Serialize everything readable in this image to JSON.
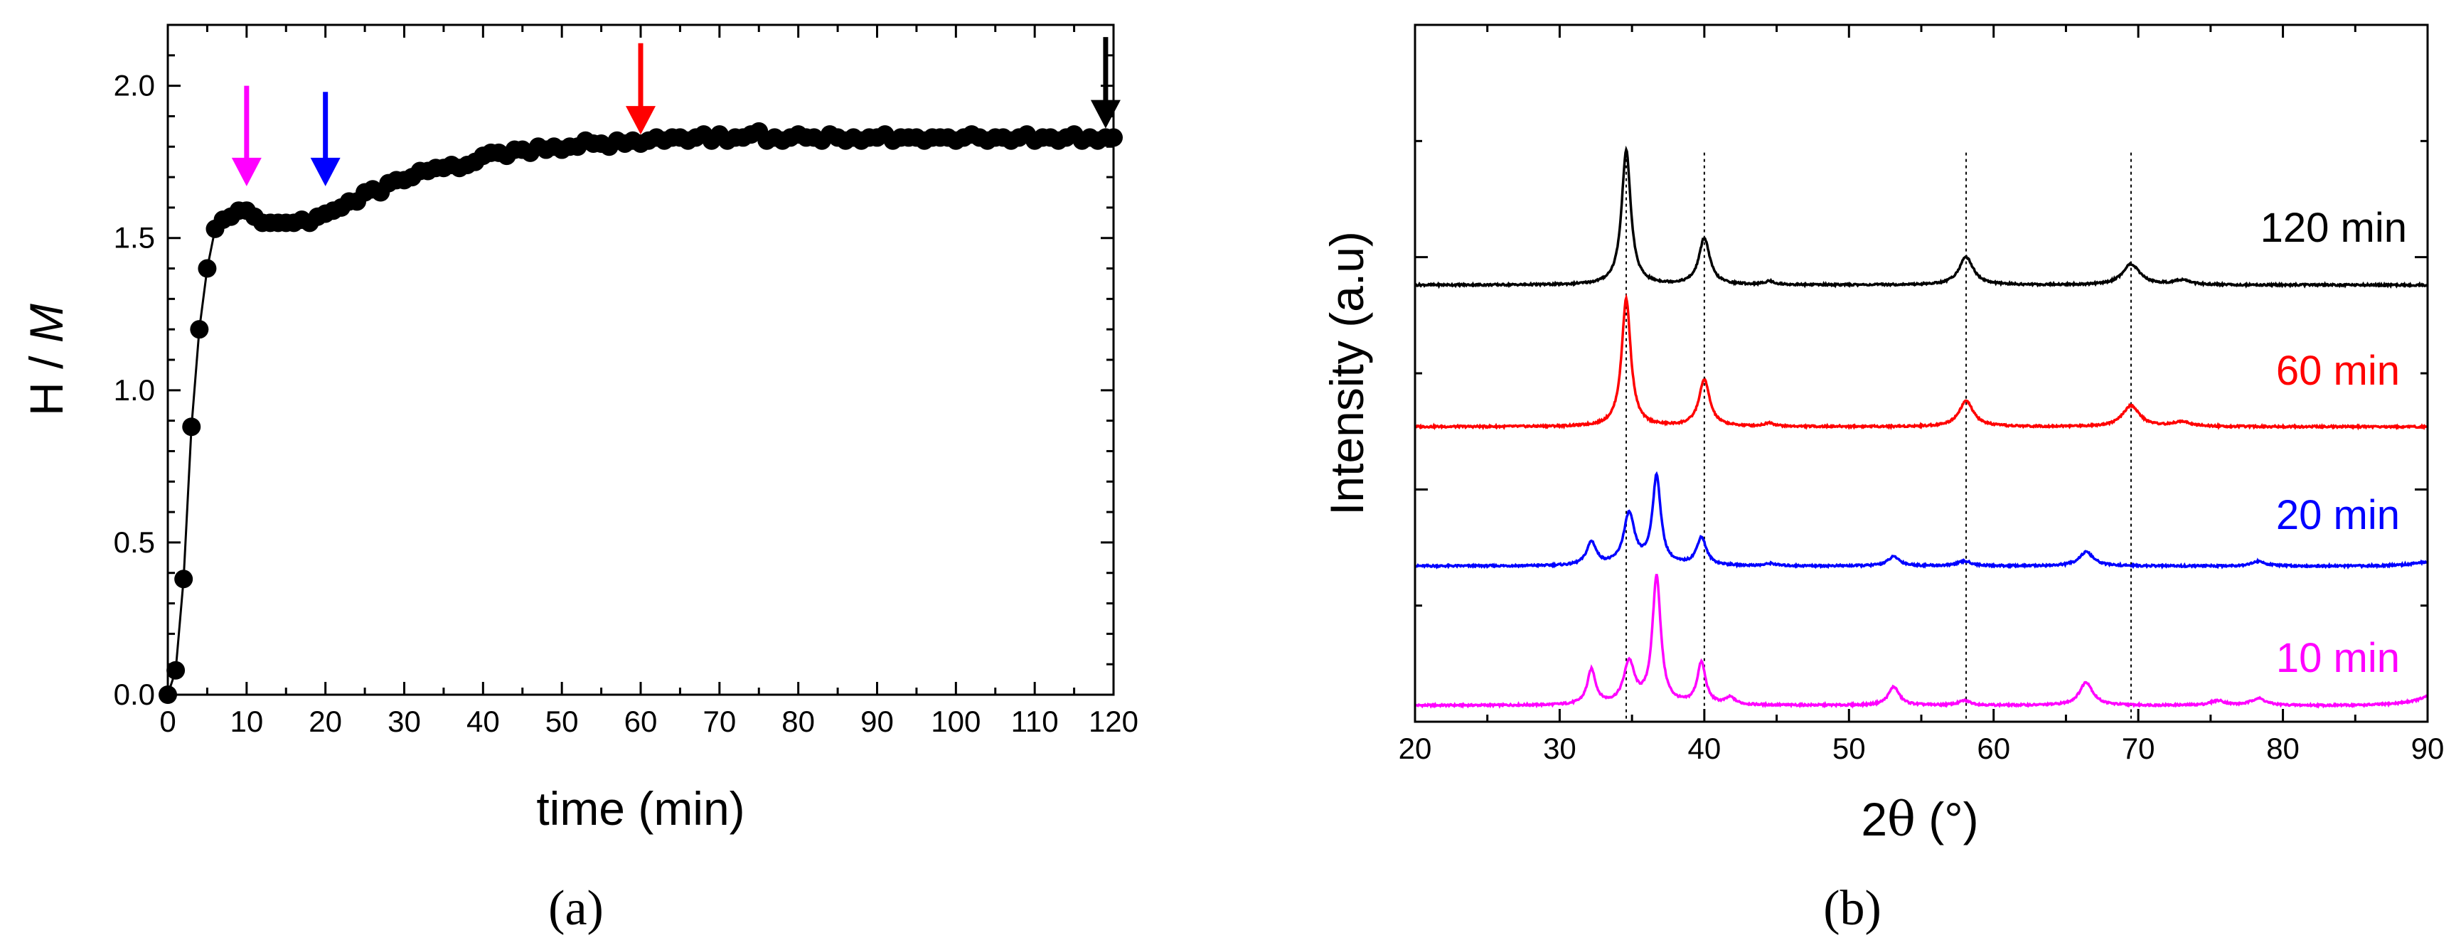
{
  "chart_data": [
    {
      "type": "scatter",
      "panel_label": "(a)",
      "xlabel": "time (min)",
      "ylabel_main": "H / ",
      "ylabel_italic": "M",
      "xlim": [
        0,
        120
      ],
      "ylim": [
        0,
        2.2
      ],
      "x_ticks": [
        0,
        10,
        20,
        30,
        40,
        50,
        60,
        70,
        80,
        90,
        100,
        110,
        120
      ],
      "y_ticks": [
        0.0,
        0.5,
        1.0,
        1.5,
        2.0
      ],
      "y_tick_labels": [
        "0.0",
        "0.5",
        "1.0",
        "1.5",
        "2.0"
      ],
      "series": [
        {
          "name": "H/M",
          "color": "#000000",
          "x": [
            0,
            1,
            2,
            3,
            4,
            5,
            6,
            7,
            8,
            9,
            10,
            11,
            12,
            13,
            14,
            15,
            16,
            17,
            18,
            19,
            20,
            21,
            22,
            23,
            24,
            25,
            26,
            27,
            28,
            29,
            30,
            31,
            32,
            33,
            34,
            35,
            36,
            37,
            38,
            39,
            40,
            41,
            42,
            43,
            44,
            45,
            46,
            47,
            48,
            49,
            50,
            51,
            52,
            53,
            54,
            55,
            56,
            57,
            58,
            59,
            60,
            61,
            62,
            63,
            64,
            65,
            66,
            67,
            68,
            69,
            70,
            71,
            72,
            73,
            74,
            75,
            76,
            77,
            78,
            79,
            80,
            81,
            82,
            83,
            84,
            85,
            86,
            87,
            88,
            89,
            90,
            91,
            92,
            93,
            94,
            95,
            96,
            97,
            98,
            99,
            100,
            101,
            102,
            103,
            104,
            105,
            106,
            107,
            108,
            109,
            110,
            111,
            112,
            113,
            114,
            115,
            116,
            117,
            118,
            119,
            120
          ],
          "y": [
            0.0,
            0.08,
            0.38,
            0.88,
            1.2,
            1.4,
            1.53,
            1.56,
            1.57,
            1.59,
            1.59,
            1.57,
            1.55,
            1.55,
            1.55,
            1.55,
            1.55,
            1.56,
            1.55,
            1.57,
            1.58,
            1.59,
            1.6,
            1.62,
            1.62,
            1.65,
            1.66,
            1.65,
            1.68,
            1.69,
            1.69,
            1.7,
            1.72,
            1.72,
            1.73,
            1.73,
            1.74,
            1.73,
            1.74,
            1.75,
            1.77,
            1.78,
            1.78,
            1.77,
            1.79,
            1.79,
            1.78,
            1.8,
            1.79,
            1.8,
            1.79,
            1.8,
            1.8,
            1.82,
            1.81,
            1.81,
            1.8,
            1.82,
            1.81,
            1.82,
            1.81,
            1.82,
            1.83,
            1.82,
            1.83,
            1.83,
            1.82,
            1.83,
            1.84,
            1.82,
            1.84,
            1.82,
            1.83,
            1.83,
            1.84,
            1.85,
            1.82,
            1.83,
            1.82,
            1.83,
            1.84,
            1.83,
            1.83,
            1.82,
            1.84,
            1.83,
            1.82,
            1.83,
            1.82,
            1.83,
            1.83,
            1.84,
            1.82,
            1.83,
            1.83,
            1.83,
            1.82,
            1.83,
            1.83,
            1.83,
            1.82,
            1.83,
            1.84,
            1.83,
            1.82,
            1.83,
            1.83,
            1.82,
            1.83,
            1.84,
            1.82,
            1.83,
            1.83,
            1.82,
            1.83,
            1.84,
            1.82,
            1.83,
            1.82,
            1.83,
            1.83
          ]
        }
      ],
      "annotations": [
        {
          "type": "arrow",
          "x": 10,
          "color": "#ff00ff",
          "top": 2.0,
          "tip": 1.67
        },
        {
          "type": "arrow",
          "x": 20,
          "color": "#0000ff",
          "top": 1.98,
          "tip": 1.67
        },
        {
          "type": "arrow",
          "x": 60,
          "color": "#ff0000",
          "top": 2.14,
          "tip": 1.84
        },
        {
          "type": "arrow",
          "x": 119,
          "color": "#000000",
          "top": 2.16,
          "tip": 1.86
        }
      ]
    },
    {
      "type": "line",
      "panel_label": "(b)",
      "xlabel_greek": "θ",
      "xlabel_prefix": "2",
      "xlabel_suffix": " (°)",
      "ylabel": "Intensity (a.u)",
      "xlim": [
        20,
        90
      ],
      "ylim": [
        0,
        3.0
      ],
      "x_ticks": [
        20,
        30,
        40,
        50,
        60,
        70,
        80,
        90
      ],
      "reference_lines_x": [
        34.6,
        40.0,
        58.1,
        69.5
      ],
      "series": [
        {
          "name": "10 min",
          "color": "#ff00ff",
          "baseline": 0.07,
          "peaks": [
            [
              32.2,
              0.15,
              0.35
            ],
            [
              34.8,
              0.18,
              0.45
            ],
            [
              36.7,
              0.55,
              0.35
            ],
            [
              39.8,
              0.18,
              0.35
            ],
            [
              41.8,
              0.03,
              0.4
            ],
            [
              53.1,
              0.08,
              0.45
            ],
            [
              58.0,
              0.02,
              0.5
            ],
            [
              66.4,
              0.1,
              0.55
            ],
            [
              75.5,
              0.02,
              0.6
            ],
            [
              78.3,
              0.03,
              0.6
            ]
          ],
          "end_rise": 0.04
        },
        {
          "name": "20 min",
          "color": "#0000ff",
          "baseline": 0.67,
          "peaks": [
            [
              32.2,
              0.1,
              0.4
            ],
            [
              34.8,
              0.22,
              0.45
            ],
            [
              36.7,
              0.38,
              0.35
            ],
            [
              39.8,
              0.12,
              0.4
            ],
            [
              44.6,
              0.01,
              0.4
            ],
            [
              53.1,
              0.04,
              0.5
            ],
            [
              58.0,
              0.02,
              0.6
            ],
            [
              66.4,
              0.06,
              0.6
            ],
            [
              78.3,
              0.02,
              0.6
            ]
          ],
          "end_rise": 0.02
        },
        {
          "name": "60 min",
          "color": "#ff0000",
          "baseline": 1.27,
          "peaks": [
            [
              34.6,
              0.55,
              0.38
            ],
            [
              40.0,
              0.2,
              0.45
            ],
            [
              44.5,
              0.015,
              0.4
            ],
            [
              58.1,
              0.11,
              0.6
            ],
            [
              69.5,
              0.09,
              0.7
            ],
            [
              73.0,
              0.02,
              0.7
            ]
          ],
          "end_rise": 0.0
        },
        {
          "name": "120 min",
          "color": "#000000",
          "baseline": 1.88,
          "peaks": [
            [
              34.6,
              0.58,
              0.38
            ],
            [
              40.0,
              0.2,
              0.45
            ],
            [
              44.5,
              0.015,
              0.4
            ],
            [
              58.1,
              0.12,
              0.6
            ],
            [
              69.5,
              0.09,
              0.7
            ],
            [
              73.0,
              0.02,
              0.7
            ]
          ],
          "end_rise": 0.0
        }
      ]
    }
  ]
}
